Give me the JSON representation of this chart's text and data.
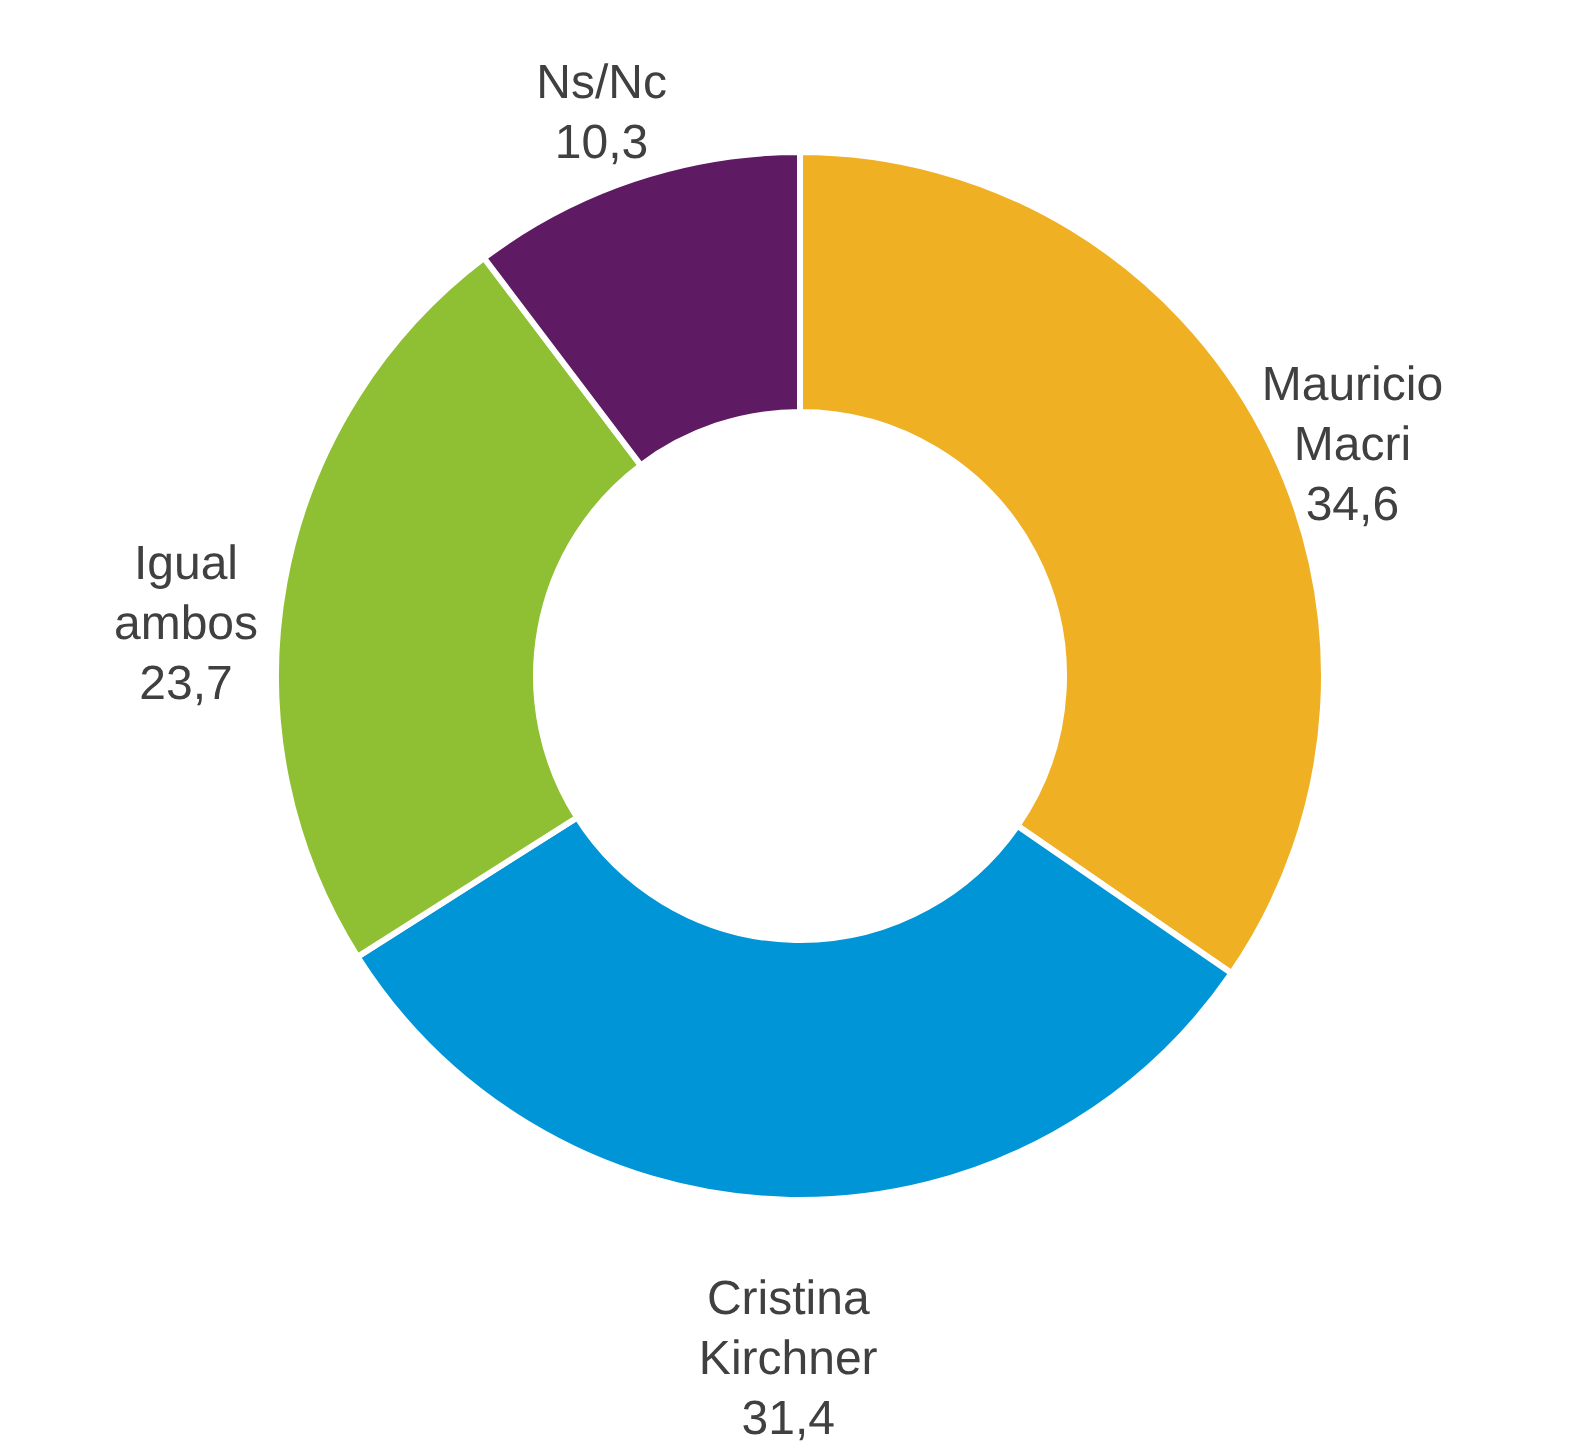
{
  "chart_data": {
    "type": "donut",
    "categories": [
      "Mauricio Macri",
      "Cristina Kirchner",
      "Igual ambos",
      "Ns/Nc"
    ],
    "values": [
      34.6,
      31.4,
      23.7,
      10.3
    ],
    "colors": [
      "#f0b023",
      "#0095d6",
      "#8fbf32",
      "#5e1a63"
    ],
    "value_labels": [
      "34,6",
      "31,4",
      "23,7",
      "10,3"
    ]
  }
}
